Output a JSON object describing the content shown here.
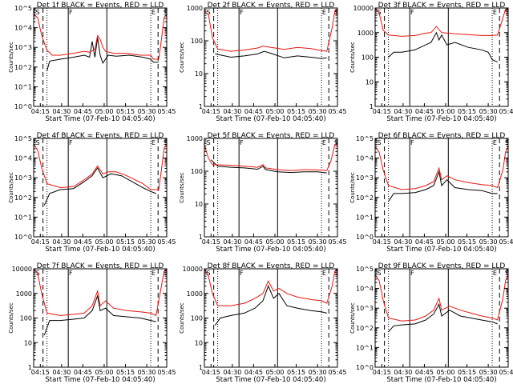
{
  "chart_data": [
    {
      "type": "line",
      "title": "Det 1f BLACK = Events, RED = LLD",
      "ylog": true,
      "ylim_exp": [
        0,
        5
      ],
      "ytick_labels": [
        "10^0",
        "10^1",
        "10^2",
        "10^3",
        "10^4",
        "10^5"
      ],
      "red": [
        [
          0,
          4.7
        ],
        [
          0.03,
          4.5
        ],
        [
          0.06,
          3.6
        ],
        [
          0.1,
          2.85
        ],
        [
          0.14,
          2.6
        ],
        [
          0.2,
          2.6
        ],
        [
          0.3,
          2.7
        ],
        [
          0.38,
          2.8
        ],
        [
          0.42,
          2.75
        ],
        [
          0.46,
          2.9
        ],
        [
          0.48,
          3.6
        ],
        [
          0.5,
          3.4
        ],
        [
          0.52,
          3.0
        ],
        [
          0.54,
          2.8
        ],
        [
          0.6,
          2.7
        ],
        [
          0.7,
          2.7
        ],
        [
          0.8,
          2.6
        ],
        [
          0.88,
          2.6
        ],
        [
          0.9,
          2.4
        ],
        [
          0.94,
          2.4
        ],
        [
          0.96,
          3.4
        ],
        [
          0.98,
          4.5
        ],
        [
          1,
          4.7
        ]
      ],
      "black": [
        [
          0.1,
          1.8
        ],
        [
          0.12,
          2.3
        ],
        [
          0.2,
          2.4
        ],
        [
          0.3,
          2.5
        ],
        [
          0.38,
          2.6
        ],
        [
          0.42,
          2.5
        ],
        [
          0.44,
          3.3
        ],
        [
          0.46,
          2.5
        ],
        [
          0.48,
          3.5
        ],
        [
          0.5,
          2.6
        ],
        [
          0.52,
          2.2
        ],
        [
          0.56,
          2.6
        ],
        [
          0.62,
          2.55
        ],
        [
          0.72,
          2.6
        ],
        [
          0.82,
          2.5
        ],
        [
          0.88,
          2.4
        ],
        [
          0.9,
          2.25
        ],
        [
          0.94,
          2.25
        ]
      ]
    },
    {
      "type": "line",
      "title": "Det 2f BLACK = Events, RED = LLD",
      "ylog": true,
      "ylim_exp": [
        0,
        3
      ],
      "ytick_labels": [
        "1",
        "10",
        "100",
        "1000"
      ],
      "red": [
        [
          0,
          2.9
        ],
        [
          0.03,
          2.8
        ],
        [
          0.06,
          2.1
        ],
        [
          0.1,
          1.75
        ],
        [
          0.2,
          1.68
        ],
        [
          0.3,
          1.72
        ],
        [
          0.4,
          1.78
        ],
        [
          0.44,
          1.84
        ],
        [
          0.5,
          1.8
        ],
        [
          0.6,
          1.74
        ],
        [
          0.7,
          1.8
        ],
        [
          0.8,
          1.76
        ],
        [
          0.88,
          1.7
        ],
        [
          0.92,
          1.68
        ],
        [
          0.96,
          2.4
        ],
        [
          0.98,
          2.9
        ],
        [
          1,
          2.95
        ]
      ],
      "black": [
        [
          0.08,
          1.6
        ],
        [
          0.2,
          1.5
        ],
        [
          0.3,
          1.54
        ],
        [
          0.4,
          1.6
        ],
        [
          0.45,
          1.68
        ],
        [
          0.5,
          1.62
        ],
        [
          0.6,
          1.48
        ],
        [
          0.7,
          1.54
        ],
        [
          0.8,
          1.5
        ],
        [
          0.88,
          1.46
        ],
        [
          0.92,
          1.48
        ]
      ]
    },
    {
      "type": "line",
      "title": "Det 3f BLACK = Events, RED = LLD",
      "ylog": true,
      "ylim_exp": [
        0,
        4
      ],
      "ytick_labels": [
        "1",
        "10",
        "100",
        "1000",
        "10000"
      ],
      "red": [
        [
          0,
          4.0
        ],
        [
          0.03,
          3.8
        ],
        [
          0.06,
          3.1
        ],
        [
          0.1,
          2.9
        ],
        [
          0.2,
          2.85
        ],
        [
          0.3,
          2.88
        ],
        [
          0.38,
          2.98
        ],
        [
          0.42,
          3.0
        ],
        [
          0.46,
          3.25
        ],
        [
          0.5,
          3.0
        ],
        [
          0.6,
          2.95
        ],
        [
          0.7,
          2.92
        ],
        [
          0.8,
          2.88
        ],
        [
          0.88,
          2.88
        ],
        [
          0.92,
          2.9
        ],
        [
          0.96,
          3.6
        ],
        [
          0.98,
          3.95
        ],
        [
          1,
          4.0
        ]
      ],
      "black": [
        [
          0.1,
          2.0
        ],
        [
          0.14,
          2.2
        ],
        [
          0.2,
          2.2
        ],
        [
          0.3,
          2.3
        ],
        [
          0.38,
          2.5
        ],
        [
          0.42,
          2.6
        ],
        [
          0.46,
          3.0
        ],
        [
          0.48,
          2.7
        ],
        [
          0.5,
          2.9
        ],
        [
          0.54,
          2.5
        ],
        [
          0.6,
          2.6
        ],
        [
          0.7,
          2.4
        ],
        [
          0.8,
          2.3
        ],
        [
          0.85,
          2.2
        ],
        [
          0.88,
          1.9
        ],
        [
          0.92,
          1.8
        ]
      ]
    },
    {
      "type": "line",
      "title": "Det 4f BLACK = Events, RED = LLD",
      "ylog": true,
      "ylim_exp": [
        0,
        5
      ],
      "ytick_labels": [
        "10^0",
        "10^1",
        "10^2",
        "10^3",
        "10^4",
        "10^5"
      ],
      "red": [
        [
          0,
          4.7
        ],
        [
          0.03,
          4.4
        ],
        [
          0.06,
          3.5
        ],
        [
          0.1,
          2.7
        ],
        [
          0.2,
          2.5
        ],
        [
          0.3,
          2.55
        ],
        [
          0.38,
          2.9
        ],
        [
          0.44,
          3.2
        ],
        [
          0.48,
          3.6
        ],
        [
          0.52,
          3.2
        ],
        [
          0.56,
          3.3
        ],
        [
          0.62,
          3.3
        ],
        [
          0.7,
          3.1
        ],
        [
          0.76,
          2.9
        ],
        [
          0.82,
          2.7
        ],
        [
          0.88,
          2.4
        ],
        [
          0.94,
          2.4
        ],
        [
          0.96,
          3.4
        ],
        [
          0.98,
          4.5
        ],
        [
          1,
          4.7
        ]
      ],
      "black": [
        [
          0.08,
          1.6
        ],
        [
          0.12,
          2.2
        ],
        [
          0.2,
          2.4
        ],
        [
          0.3,
          2.45
        ],
        [
          0.38,
          2.8
        ],
        [
          0.44,
          3.1
        ],
        [
          0.48,
          3.5
        ],
        [
          0.52,
          3.0
        ],
        [
          0.58,
          3.2
        ],
        [
          0.66,
          3.1
        ],
        [
          0.74,
          2.8
        ],
        [
          0.82,
          2.5
        ],
        [
          0.88,
          2.3
        ],
        [
          0.92,
          2.2
        ]
      ]
    },
    {
      "type": "line",
      "title": "Det 5f BLACK = Events, RED = LLD",
      "ylog": true,
      "ylim_exp": [
        0,
        3
      ],
      "ytick_labels": [
        "1",
        "10",
        "100",
        "1000"
      ],
      "red": [
        [
          0,
          2.8
        ],
        [
          0.03,
          2.4
        ],
        [
          0.06,
          2.2
        ],
        [
          0.2,
          2.18
        ],
        [
          0.3,
          2.15
        ],
        [
          0.4,
          2.12
        ],
        [
          0.44,
          2.2
        ],
        [
          0.46,
          2.1
        ],
        [
          0.55,
          2.05
        ],
        [
          0.65,
          2.02
        ],
        [
          0.75,
          2.05
        ],
        [
          0.85,
          2.04
        ],
        [
          0.92,
          2.02
        ],
        [
          0.95,
          2.3
        ],
        [
          0.98,
          2.8
        ],
        [
          1,
          2.85
        ]
      ],
      "black": [
        [
          0.05,
          2.35
        ],
        [
          0.1,
          2.15
        ],
        [
          0.2,
          2.12
        ],
        [
          0.3,
          2.1
        ],
        [
          0.4,
          2.06
        ],
        [
          0.44,
          2.15
        ],
        [
          0.46,
          2.05
        ],
        [
          0.55,
          1.98
        ],
        [
          0.65,
          1.96
        ],
        [
          0.75,
          1.98
        ],
        [
          0.85,
          1.98
        ],
        [
          0.92,
          1.95
        ]
      ]
    },
    {
      "type": "line",
      "title": "Det 6f BLACK = Events, RED = LLD",
      "ylog": true,
      "ylim_exp": [
        0,
        5
      ],
      "ytick_labels": [
        "10^0",
        "10^1",
        "10^2",
        "10^3",
        "10^4",
        "10^5"
      ],
      "red": [
        [
          0,
          4.6
        ],
        [
          0.03,
          4.3
        ],
        [
          0.06,
          3.4
        ],
        [
          0.1,
          2.6
        ],
        [
          0.2,
          2.4
        ],
        [
          0.3,
          2.45
        ],
        [
          0.38,
          2.6
        ],
        [
          0.44,
          2.8
        ],
        [
          0.48,
          3.5
        ],
        [
          0.5,
          2.9
        ],
        [
          0.54,
          3.1
        ],
        [
          0.6,
          2.9
        ],
        [
          0.7,
          2.75
        ],
        [
          0.8,
          2.65
        ],
        [
          0.88,
          2.6
        ],
        [
          0.92,
          2.5
        ],
        [
          0.96,
          3.4
        ],
        [
          0.98,
          4.3
        ],
        [
          1,
          4.6
        ]
      ],
      "black": [
        [
          0.1,
          1.8
        ],
        [
          0.14,
          2.2
        ],
        [
          0.2,
          2.2
        ],
        [
          0.3,
          2.25
        ],
        [
          0.38,
          2.4
        ],
        [
          0.44,
          2.6
        ],
        [
          0.48,
          3.3
        ],
        [
          0.5,
          2.6
        ],
        [
          0.54,
          2.9
        ],
        [
          0.6,
          2.5
        ],
        [
          0.7,
          2.4
        ],
        [
          0.8,
          2.35
        ],
        [
          0.88,
          2.2
        ],
        [
          0.92,
          2.2
        ]
      ]
    },
    {
      "type": "line",
      "title": "Det 7f BLACK = Events, RED = LLD",
      "ylog": true,
      "ylim_exp": [
        0,
        4
      ],
      "ytick_labels": [
        "1",
        "10",
        "100",
        "1000",
        "10000"
      ],
      "red": [
        [
          0,
          4.0
        ],
        [
          0.03,
          3.8
        ],
        [
          0.06,
          3.0
        ],
        [
          0.1,
          2.2
        ],
        [
          0.2,
          2.1
        ],
        [
          0.3,
          2.15
        ],
        [
          0.38,
          2.2
        ],
        [
          0.44,
          2.5
        ],
        [
          0.48,
          3.1
        ],
        [
          0.5,
          2.5
        ],
        [
          0.54,
          2.7
        ],
        [
          0.6,
          2.4
        ],
        [
          0.7,
          2.3
        ],
        [
          0.8,
          2.25
        ],
        [
          0.88,
          2.2
        ],
        [
          0.92,
          2.1
        ],
        [
          0.96,
          3.3
        ],
        [
          0.98,
          3.9
        ],
        [
          1,
          4.0
        ]
      ],
      "black": [
        [
          0.08,
          1.3
        ],
        [
          0.12,
          1.9
        ],
        [
          0.2,
          1.9
        ],
        [
          0.3,
          1.95
        ],
        [
          0.38,
          2.0
        ],
        [
          0.44,
          2.3
        ],
        [
          0.48,
          2.9
        ],
        [
          0.5,
          2.3
        ],
        [
          0.54,
          2.4
        ],
        [
          0.6,
          2.1
        ],
        [
          0.7,
          2.05
        ],
        [
          0.8,
          2.0
        ],
        [
          0.88,
          1.9
        ],
        [
          0.92,
          1.85
        ]
      ]
    },
    {
      "type": "line",
      "title": "Det 8f BLACK = Events, RED = LLD",
      "ylog": true,
      "ylim_exp": [
        0,
        4
      ],
      "ytick_labels": [
        "1",
        "10",
        "100",
        "1000",
        "10000"
      ],
      "red": [
        [
          0,
          4.0
        ],
        [
          0.03,
          3.7
        ],
        [
          0.06,
          3.0
        ],
        [
          0.1,
          2.5
        ],
        [
          0.2,
          2.5
        ],
        [
          0.3,
          2.6
        ],
        [
          0.38,
          2.8
        ],
        [
          0.44,
          3.0
        ],
        [
          0.48,
          3.5
        ],
        [
          0.52,
          3.1
        ],
        [
          0.56,
          3.2
        ],
        [
          0.62,
          3.0
        ],
        [
          0.7,
          2.85
        ],
        [
          0.8,
          2.75
        ],
        [
          0.88,
          2.7
        ],
        [
          0.92,
          2.6
        ],
        [
          0.96,
          3.3
        ],
        [
          0.98,
          3.9
        ],
        [
          1,
          4.0
        ]
      ],
      "black": [
        [
          0.08,
          1.7
        ],
        [
          0.12,
          2.0
        ],
        [
          0.2,
          2.1
        ],
        [
          0.3,
          2.2
        ],
        [
          0.38,
          2.4
        ],
        [
          0.44,
          2.7
        ],
        [
          0.48,
          3.3
        ],
        [
          0.52,
          2.8
        ],
        [
          0.56,
          3.0
        ],
        [
          0.62,
          2.5
        ],
        [
          0.7,
          2.4
        ],
        [
          0.8,
          2.3
        ],
        [
          0.88,
          2.25
        ],
        [
          0.92,
          2.2
        ]
      ]
    },
    {
      "type": "line",
      "title": "Det 9f BLACK = Events, RED = LLD",
      "ylog": true,
      "ylim_exp": [
        0,
        5
      ],
      "ytick_labels": [
        "10^0",
        "10^1",
        "10^2",
        "10^3",
        "10^4",
        "10^5"
      ],
      "red": [
        [
          0,
          4.7
        ],
        [
          0.03,
          4.4
        ],
        [
          0.06,
          3.4
        ],
        [
          0.1,
          2.5
        ],
        [
          0.2,
          2.35
        ],
        [
          0.3,
          2.4
        ],
        [
          0.38,
          2.6
        ],
        [
          0.44,
          2.9
        ],
        [
          0.48,
          3.5
        ],
        [
          0.5,
          2.9
        ],
        [
          0.56,
          3.1
        ],
        [
          0.64,
          2.9
        ],
        [
          0.72,
          2.75
        ],
        [
          0.8,
          2.6
        ],
        [
          0.88,
          2.5
        ],
        [
          0.92,
          2.4
        ],
        [
          0.96,
          3.5
        ],
        [
          0.98,
          4.4
        ],
        [
          1,
          4.7
        ]
      ],
      "black": [
        [
          0.1,
          1.8
        ],
        [
          0.14,
          2.1
        ],
        [
          0.2,
          2.15
        ],
        [
          0.3,
          2.2
        ],
        [
          0.38,
          2.4
        ],
        [
          0.44,
          2.7
        ],
        [
          0.48,
          3.2
        ],
        [
          0.5,
          2.6
        ],
        [
          0.56,
          2.9
        ],
        [
          0.64,
          2.6
        ],
        [
          0.72,
          2.5
        ],
        [
          0.8,
          2.4
        ],
        [
          0.88,
          2.3
        ],
        [
          0.92,
          2.2
        ]
      ]
    }
  ],
  "common": {
    "xticks": [
      "04:15",
      "04:30",
      "04:45",
      "05:00",
      "05:15",
      "05:30",
      "05:45"
    ],
    "xlabel": "Start Time (07-Feb-10 04:05:40)",
    "ylabel": "Counts/sec",
    "red_color": "#e8160f",
    "black_color": "#000000",
    "markers": [
      "S",
      "F",
      "E",
      "S"
    ]
  }
}
